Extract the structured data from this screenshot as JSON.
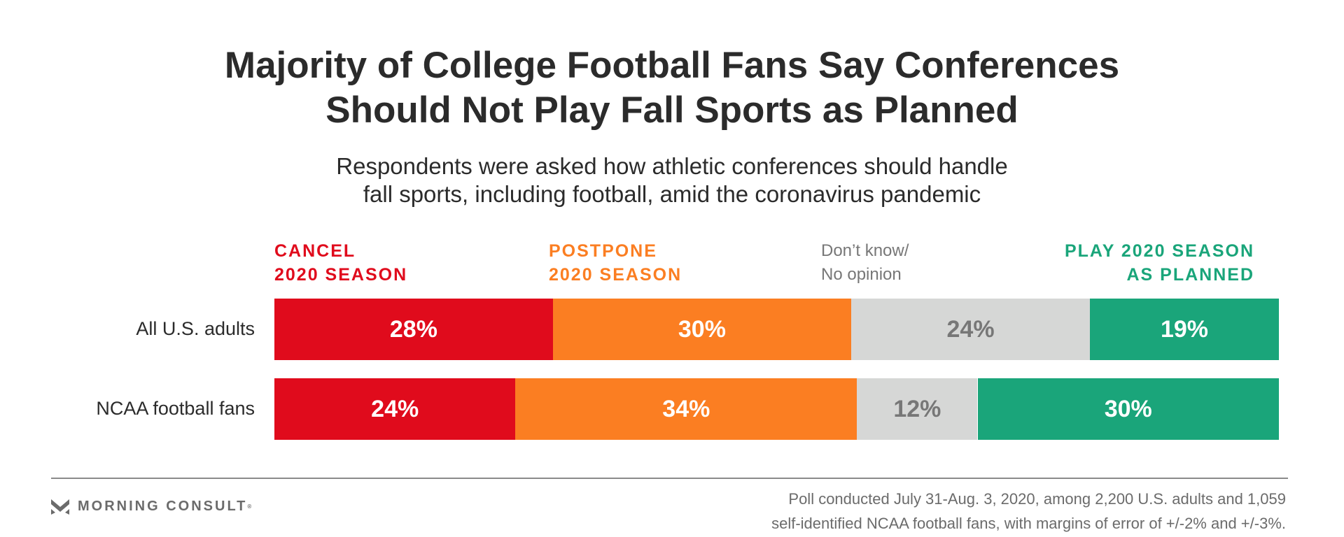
{
  "chart_data": {
    "type": "bar",
    "orientation": "horizontal",
    "stacked": true,
    "title": [
      "Majority of College Football Fans Say Conferences",
      "Should Not Play Fall Sports as Planned"
    ],
    "subtitle": [
      "Respondents were asked how athletic conferences should handle",
      "fall sports, including football, amid the coronavirus pandemic"
    ],
    "categories": [
      "All U.S. adults",
      "NCAA football fans"
    ],
    "series": [
      {
        "name": [
          "CANCEL",
          "2020 SEASON"
        ],
        "color": "#e00b1c",
        "text_color": "#ffffff",
        "values": [
          28,
          24
        ],
        "labels": [
          "28%",
          "24%"
        ]
      },
      {
        "name": [
          "POSTPONE",
          "2020 SEASON"
        ],
        "color": "#fb7e22",
        "text_color": "#ffffff",
        "values": [
          30,
          34
        ],
        "labels": [
          "30%",
          "34%"
        ]
      },
      {
        "name": [
          "Don’t know/",
          "No opinion"
        ],
        "color": "#d6d7d6",
        "text_color": "#777777",
        "values": [
          24,
          12
        ],
        "labels": [
          "24%",
          "12%"
        ]
      },
      {
        "name": [
          "PLAY 2020 SEASON",
          "AS PLANNED"
        ],
        "color": "#1aa57a",
        "text_color": "#ffffff",
        "values": [
          19,
          30
        ],
        "labels": [
          "19%",
          "30%"
        ]
      }
    ],
    "unit": "%",
    "legend_placement": "top",
    "grid": false
  },
  "footer": {
    "logo": "MORNING CONSULT",
    "note": [
      "Poll conducted July 31-Aug. 3, 2020, among 2,200 U.S. adults and 1,059",
      "self-identified NCAA football fans, with margins of error of +/-2% and +/-3%."
    ]
  }
}
